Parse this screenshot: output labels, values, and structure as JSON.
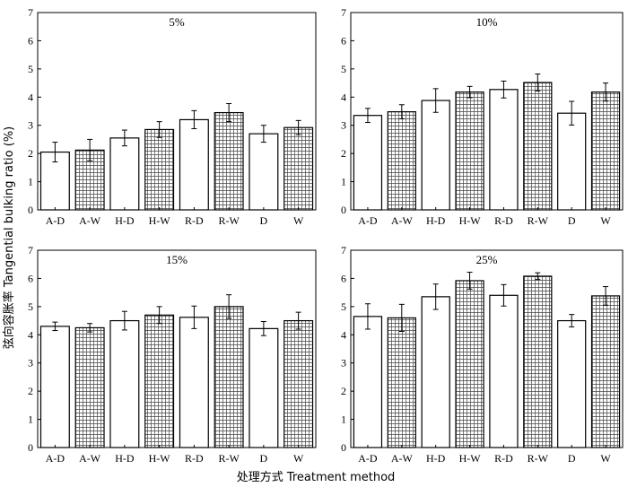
{
  "figure": {
    "ylabel": "弦向容胀率 Tangential bulking ratio (%)",
    "xlabel": "处理方式 Treatment method"
  },
  "chart_data": [
    {
      "type": "bar",
      "title": "5%",
      "categories": [
        "A-D",
        "A-W",
        "H-D",
        "H-W",
        "R-D",
        "R-W",
        "D",
        "W"
      ],
      "values": [
        2.05,
        2.12,
        2.55,
        2.85,
        3.2,
        3.45,
        2.7,
        2.92
      ],
      "errors": [
        0.35,
        0.38,
        0.28,
        0.28,
        0.32,
        0.32,
        0.3,
        0.25
      ],
      "patterns": [
        "white",
        "grid",
        "white",
        "grid",
        "white",
        "grid",
        "white",
        "grid"
      ],
      "ylim": [
        0,
        7
      ],
      "yticks": [
        0,
        1,
        2,
        3,
        4,
        5,
        6,
        7
      ]
    },
    {
      "type": "bar",
      "title": "10%",
      "categories": [
        "A-D",
        "A-W",
        "H-D",
        "H-W",
        "R-D",
        "R-W",
        "D",
        "W"
      ],
      "values": [
        3.35,
        3.48,
        3.88,
        4.18,
        4.27,
        4.52,
        3.43,
        4.18
      ],
      "errors": [
        0.25,
        0.25,
        0.42,
        0.2,
        0.3,
        0.3,
        0.42,
        0.32
      ],
      "patterns": [
        "white",
        "grid",
        "white",
        "grid",
        "white",
        "grid",
        "white",
        "grid"
      ],
      "ylim": [
        0,
        7
      ],
      "yticks": [
        0,
        1,
        2,
        3,
        4,
        5,
        6,
        7
      ]
    },
    {
      "type": "bar",
      "title": "15%",
      "categories": [
        "A-D",
        "A-W",
        "H-D",
        "H-W",
        "R-D",
        "R-W",
        "D",
        "W"
      ],
      "values": [
        4.3,
        4.25,
        4.5,
        4.7,
        4.62,
        5.0,
        4.22,
        4.5
      ],
      "errors": [
        0.15,
        0.15,
        0.33,
        0.3,
        0.4,
        0.42,
        0.25,
        0.3
      ],
      "patterns": [
        "white",
        "grid",
        "white",
        "grid",
        "white",
        "grid",
        "white",
        "grid"
      ],
      "ylim": [
        0,
        7
      ],
      "yticks": [
        0,
        1,
        2,
        3,
        4,
        5,
        6,
        7
      ]
    },
    {
      "type": "bar",
      "title": "25%",
      "categories": [
        "A-D",
        "A-W",
        "H-D",
        "H-W",
        "R-D",
        "R-W",
        "D",
        "W"
      ],
      "values": [
        4.65,
        4.6,
        5.35,
        5.92,
        5.4,
        6.08,
        4.5,
        5.38
      ],
      "errors": [
        0.45,
        0.48,
        0.45,
        0.3,
        0.38,
        0.12,
        0.22,
        0.33
      ],
      "patterns": [
        "white",
        "grid",
        "white",
        "grid",
        "white",
        "grid",
        "white",
        "grid"
      ],
      "ylim": [
        0,
        7
      ],
      "yticks": [
        0,
        1,
        2,
        3,
        4,
        5,
        6,
        7
      ]
    }
  ]
}
